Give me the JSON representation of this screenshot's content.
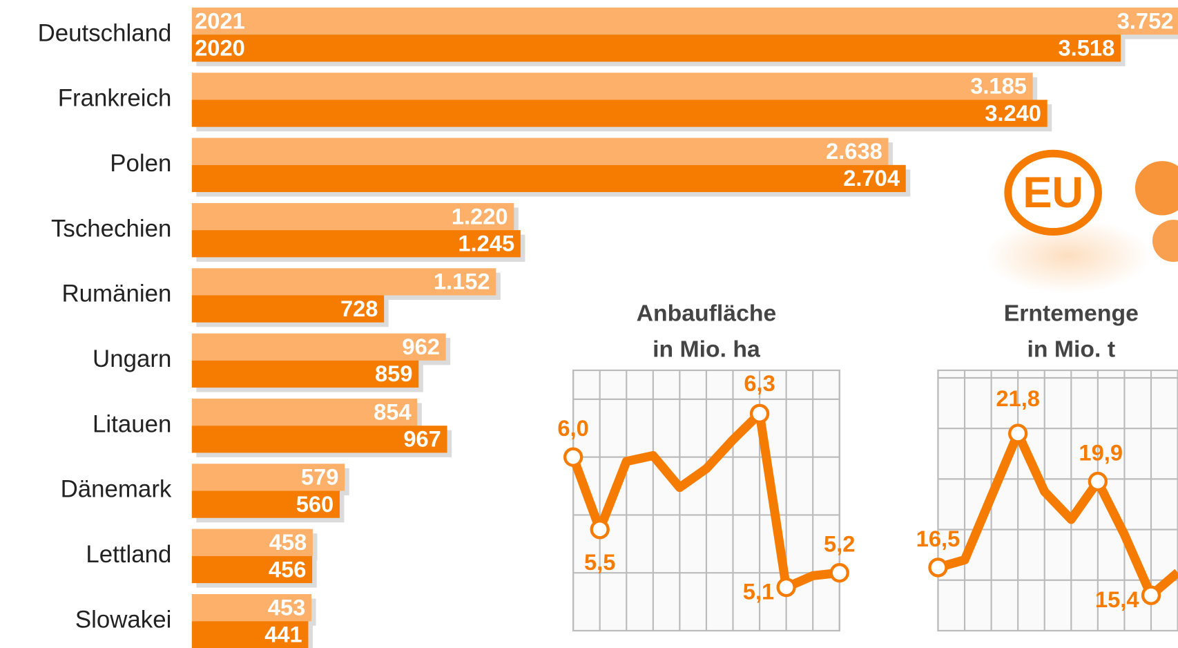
{
  "logo_text": "EU",
  "chart_data": [
    {
      "type": "bar",
      "orientation": "horizontal",
      "categories": [
        "Deutschland",
        "Frankreich",
        "Polen",
        "Tschechien",
        "Rumänien",
        "Ungarn",
        "Litauen",
        "Dänemark",
        "Lettland",
        "Slowakei"
      ],
      "series": [
        {
          "name": "2021",
          "color": "#fdb06a",
          "values": [
            3752,
            3185,
            2638,
            1220,
            1152,
            962,
            854,
            579,
            458,
            453
          ],
          "value_labels": [
            "3.752",
            "3.185",
            "2.638",
            "1.220",
            "1.152",
            "962",
            "854",
            "579",
            "458",
            "453"
          ]
        },
        {
          "name": "2020",
          "color": "#f57c00",
          "values": [
            3518,
            3240,
            2704,
            1245,
            728,
            859,
            967,
            560,
            456,
            441
          ],
          "value_labels": [
            "3.518",
            "3.240",
            "2.704",
            "1.245",
            "728",
            "859",
            "967",
            "560",
            "456",
            "441"
          ]
        }
      ]
    },
    {
      "type": "line",
      "title": "Anbaufläche",
      "subtitle": "in Mio. ha",
      "color": "#f57c00",
      "x": [
        2011,
        2012,
        2013,
        2014,
        2015,
        2016,
        2017,
        2018,
        2019,
        2020,
        2021
      ],
      "values": [
        6.0,
        5.5,
        5.97,
        6.01,
        5.79,
        5.92,
        6.12,
        6.3,
        5.1,
        5.18,
        5.2
      ],
      "value_labels": [
        "6,0",
        "5,5",
        null,
        null,
        null,
        null,
        null,
        "6,3",
        "5,1",
        null,
        "5,2"
      ],
      "xlim": [
        2011,
        2021
      ],
      "xticks": [
        2011,
        2016,
        2021
      ],
      "ylim": [
        4.8,
        6.6
      ],
      "yticks": [
        5.2,
        5.6,
        6.0,
        6.4
      ],
      "grid": true
    },
    {
      "type": "line",
      "title": "Erntemenge",
      "subtitle": "in Mio. t",
      "color": "#f57c00",
      "x": [
        2011,
        2012,
        2013,
        2014,
        2015,
        2016,
        2017,
        2018,
        2019,
        2020
      ],
      "values": [
        16.5,
        16.8,
        19.3,
        21.8,
        19.5,
        18.4,
        19.9,
        17.8,
        15.4,
        16.3
      ],
      "value_labels": [
        "16,5",
        null,
        null,
        "21,8",
        null,
        null,
        "19,9",
        null,
        "15,4",
        null
      ],
      "xlim": [
        2011,
        2021
      ],
      "xticks": [
        2011,
        2016
      ],
      "ylim": [
        14,
        24.3
      ],
      "yticks": [
        16,
        18,
        20,
        22,
        24
      ],
      "grid": true
    }
  ]
}
